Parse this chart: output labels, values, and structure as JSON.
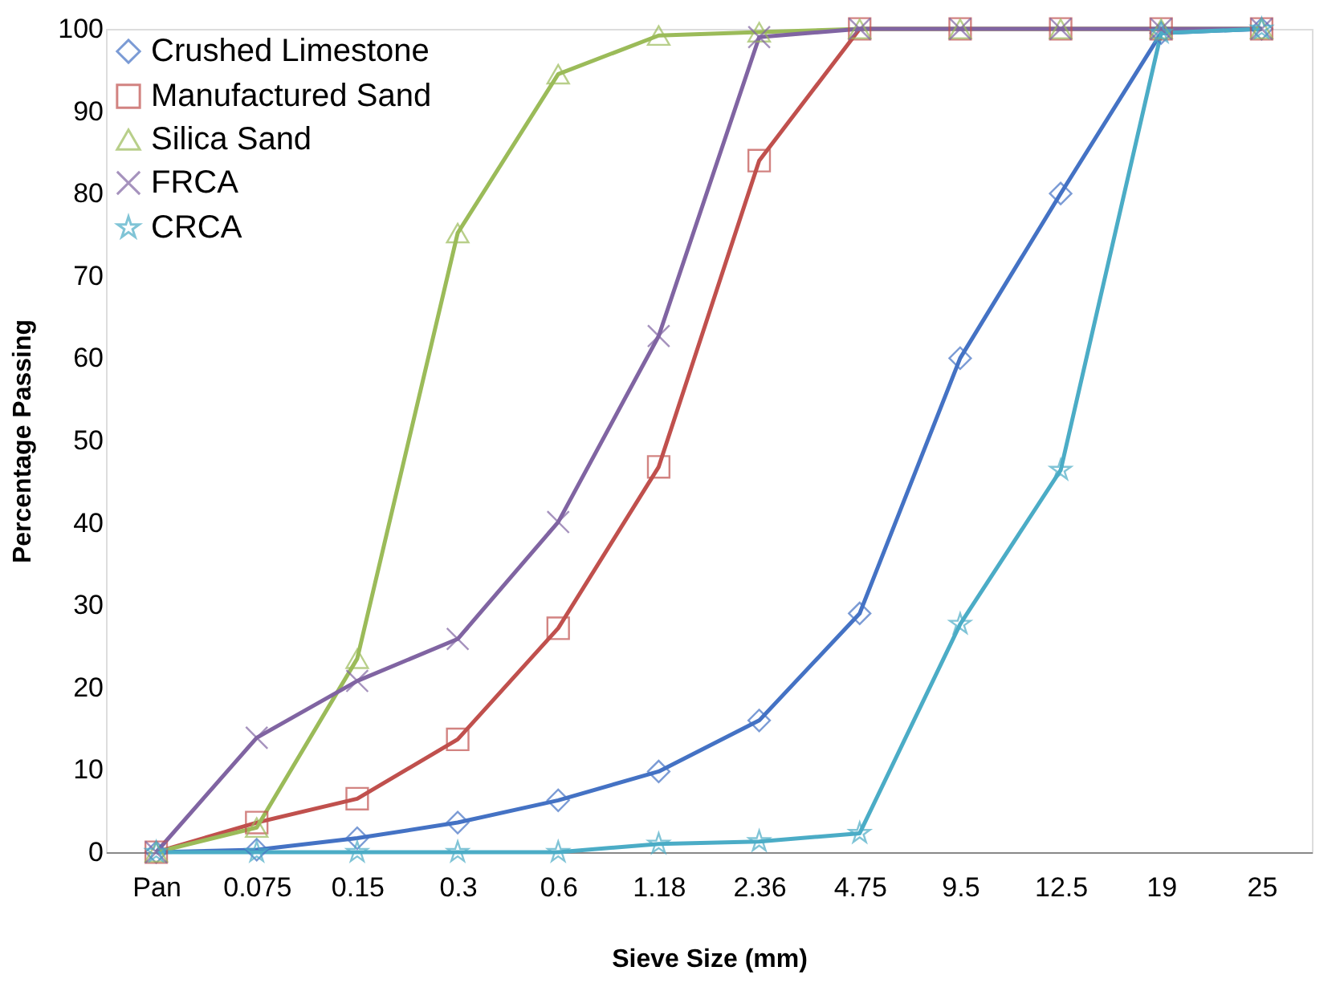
{
  "chart_data": {
    "type": "line",
    "xlabel": "Sieve Size (mm)",
    "ylabel": "Percentage Passing",
    "categories": [
      "Pan",
      "0.075",
      "0.15",
      "0.3",
      "0.6",
      "1.18",
      "2.36",
      "4.75",
      "9.5",
      "12.5",
      "19",
      "25"
    ],
    "ylim": [
      0,
      100
    ],
    "yticks": [
      0,
      10,
      20,
      30,
      40,
      50,
      60,
      70,
      80,
      90,
      100
    ],
    "grid": false,
    "legend": "top left",
    "series": [
      {
        "name": "Crushed Limestone",
        "color": "#4472c4",
        "marker": "diamond",
        "values": [
          0,
          0.3,
          1.7,
          3.6,
          6.3,
          9.8,
          16,
          29,
          60,
          80,
          99.5,
          100
        ]
      },
      {
        "name": "Manufactured Sand",
        "color": "#c0504d",
        "marker": "square",
        "values": [
          0,
          3.6,
          6.5,
          13.7,
          27.2,
          46.8,
          84,
          100,
          100,
          100,
          100,
          100
        ]
      },
      {
        "name": "Silica Sand",
        "color": "#9bbb59",
        "marker": "triangle",
        "values": [
          0,
          3,
          23.5,
          75.2,
          94.5,
          99.2,
          99.6,
          100,
          100,
          100,
          100,
          100
        ]
      },
      {
        "name": "FRCA",
        "color": "#8064a2",
        "marker": "cross",
        "values": [
          0,
          13.9,
          20.8,
          25.9,
          40.1,
          62.7,
          99,
          100,
          100,
          100,
          100,
          100
        ]
      },
      {
        "name": "CRCA",
        "color": "#4bacc6",
        "marker": "star",
        "values": [
          0,
          0,
          0,
          0,
          0,
          1,
          1.3,
          2.3,
          27.7,
          46.4,
          99.5,
          100
        ]
      }
    ]
  }
}
